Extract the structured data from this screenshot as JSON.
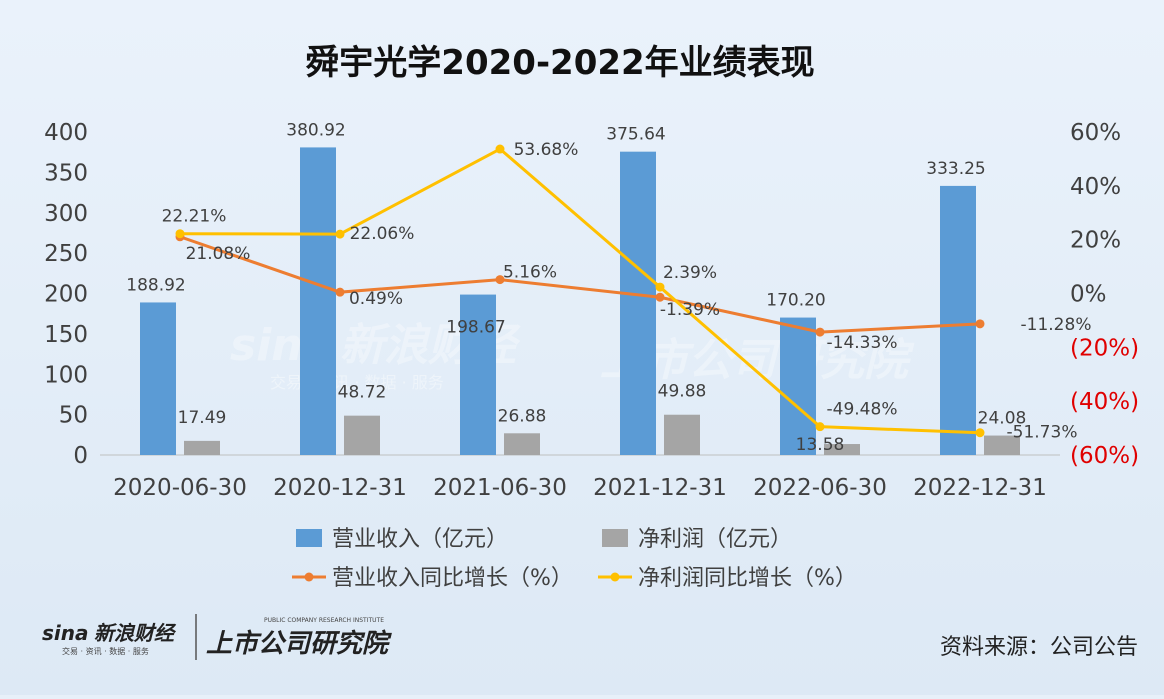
{
  "title": "舜宇光学2020-2022年业绩表现",
  "source_text": "资料来源：公司公告",
  "brand": {
    "sina_logo": "sina",
    "sina_name": "新浪财经",
    "sina_sub": "交易 · 资讯 · 数据 · 服务",
    "column_name": "上市公司研究院",
    "column_sub": "PUBLIC COMPANY RESEARCH INSTITUTE"
  },
  "colors": {
    "revenue": "#5b9bd5",
    "profit": "#a5a5a5",
    "revenue_growth": "#ed7d31",
    "profit_growth": "#ffc000"
  },
  "chart_data": {
    "type": "bar",
    "categories": [
      "2020-06-30",
      "2020-12-31",
      "2021-06-30",
      "2021-12-31",
      "2022-06-30",
      "2022-12-31"
    ],
    "left_axis": {
      "min": 0,
      "max": 400,
      "ticks": [
        "0",
        "50",
        "100",
        "150",
        "200",
        "250",
        "300",
        "350",
        "400"
      ]
    },
    "right_axis": {
      "min": -60,
      "max": 60,
      "ticks": [
        "(60%)",
        "(40%)",
        "(20%)",
        "0%",
        "20%",
        "40%",
        "60%"
      ]
    },
    "series": [
      {
        "name": "营业收入（亿元）",
        "type": "bar",
        "axis": "left",
        "values": [
          188.92,
          380.92,
          198.67,
          375.64,
          170.2,
          333.25
        ],
        "labels": [
          "188.92",
          "380.92",
          "198.67",
          "375.64",
          "170.20",
          "333.25"
        ]
      },
      {
        "name": "净利润（亿元）",
        "type": "bar",
        "axis": "left",
        "values": [
          17.49,
          48.72,
          26.88,
          49.88,
          13.58,
          24.08
        ],
        "labels": [
          "17.49",
          "48.72",
          "26.88",
          "49.88",
          "13.58",
          "24.08"
        ]
      },
      {
        "name": "营业收入同比增长（%）",
        "type": "line",
        "axis": "right",
        "values": [
          21.08,
          0.49,
          5.16,
          -1.39,
          -14.33,
          -11.28
        ],
        "labels": [
          "21.08%",
          "0.49%",
          "5.16%",
          "-1.39%",
          "-14.33%",
          "-11.28%"
        ]
      },
      {
        "name": "净利润同比增长（%）",
        "type": "line",
        "axis": "right",
        "values": [
          22.21,
          22.06,
          53.68,
          2.39,
          -49.48,
          -51.73
        ],
        "labels": [
          "22.21%",
          "22.06%",
          "53.68%",
          "2.39%",
          "-49.48%",
          "-51.73%"
        ]
      }
    ],
    "grid": false,
    "legend": "bottom"
  }
}
